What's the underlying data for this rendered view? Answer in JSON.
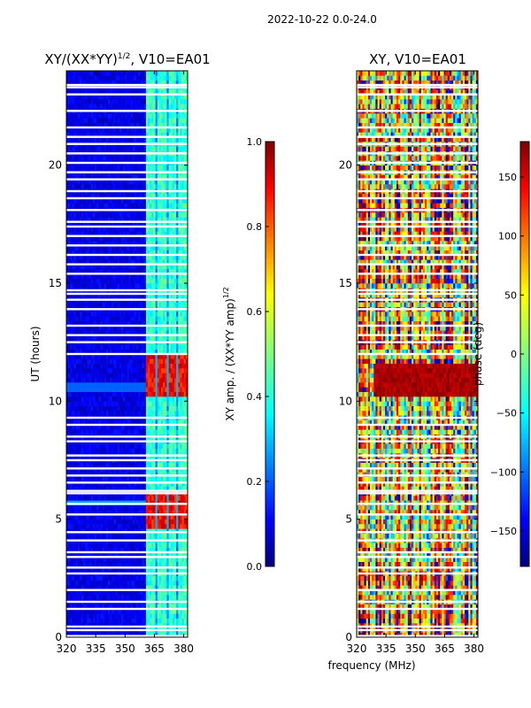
{
  "suptitle": "2022-10-22 0.0-24.0",
  "xlabel": "frequency (MHz)",
  "ylabel": "UT (hours)",
  "colors": {
    "jet": [
      "#00007f",
      "#0000ff",
      "#007fff",
      "#00ffff",
      "#7fff7f",
      "#ffff00",
      "#ff7f00",
      "#ff0000",
      "#7f0000"
    ],
    "gap": "#ffffff"
  },
  "chart_data": [
    {
      "type": "heatmap",
      "title_main": "XY/(XX*YY)",
      "title_sup": "1/2",
      "title_rest": ", V10=EA01",
      "xlabel": "frequency (MHz)",
      "ylabel": "UT (hours)",
      "xlim": [
        320,
        382
      ],
      "xticks": [
        320,
        335,
        350,
        365,
        380
      ],
      "ylim": [
        0,
        24
      ],
      "yticks": [
        0,
        5,
        10,
        15,
        20
      ],
      "colorbar": {
        "label_main": "XY amp. / (XX*YY amp)",
        "label_sup": "1/2",
        "range": [
          0.0,
          1.0
        ],
        "ticks": [
          "0.0",
          "0.2",
          "0.4",
          "0.6",
          "0.8",
          "1.0"
        ]
      },
      "description_values": {
        "background_amp": 0.05,
        "channel_band_mhz": [
          360,
          382
        ],
        "band_amp": 0.35,
        "high_amp_hours": [
          [
            4.5,
            6.0
          ],
          [
            10.2,
            11.8
          ]
        ],
        "high_amp_value": 0.8
      }
    },
    {
      "type": "heatmap",
      "title": "XY, V10=EA01",
      "xlabel": "frequency (MHz)",
      "xlim": [
        320,
        382
      ],
      "xticks": [
        320,
        335,
        350,
        365,
        380
      ],
      "ylim": [
        0,
        24
      ],
      "yticks": [
        0,
        5,
        10,
        15,
        20
      ],
      "colorbar": {
        "label": "phase (deg)",
        "range": [
          -180,
          180
        ],
        "ticks": [
          "−150",
          "−100",
          "−50",
          "0",
          "50",
          "100",
          "150"
        ]
      },
      "description_values": {
        "phase_range_deg": [
          -180,
          180
        ],
        "saturated_band_hours": [
          10.0,
          11.5
        ]
      }
    }
  ],
  "gap_hours": [
    0.05,
    0.3,
    0.45,
    1.2,
    1.5,
    2.0,
    2.7,
    2.95,
    3.4,
    3.6,
    4.1,
    4.45,
    5.2,
    5.65,
    6.1,
    6.2,
    6.55,
    6.85,
    7.15,
    7.5,
    7.7,
    8.3,
    8.5,
    9.0,
    9.3,
    12.0,
    12.5,
    12.8,
    13.2,
    13.9,
    14.3,
    14.55,
    14.7,
    15.4,
    15.8,
    16.2,
    16.6,
    17.0,
    17.4,
    17.6,
    18.1,
    18.6,
    18.9,
    19.4,
    19.7,
    20.1,
    20.5,
    20.9,
    21.2,
    21.6,
    22.3,
    23.0,
    23.3,
    23.4
  ]
}
